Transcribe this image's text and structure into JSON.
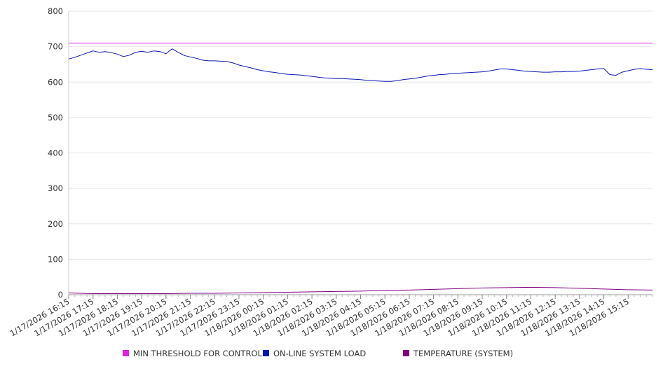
{
  "chart_data": {
    "type": "line",
    "title": "",
    "xlabel": "",
    "ylabel": "",
    "ylim": [
      0,
      800
    ],
    "y_ticks": [
      0,
      100,
      200,
      300,
      400,
      500,
      600,
      700,
      800
    ],
    "x_range": [
      "1/17/2026 16:15",
      "1/18/2026 16:15"
    ],
    "x_tick_labels": [
      "1/17/2026 16:15",
      "1/17/2026 17:15",
      "1/17/2026 18:15",
      "1/17/2026 19:15",
      "1/17/2026 20:15",
      "1/17/2026 21:15",
      "1/17/2026 22:15",
      "1/17/2026 23:15",
      "1/18/2026 00:15",
      "1/18/2026 01:15",
      "1/18/2026 02:15",
      "1/18/2026 03:15",
      "1/18/2026 04:15",
      "1/18/2026 05:15",
      "1/18/2026 06:15",
      "1/18/2026 07:15",
      "1/18/2026 08:15",
      "1/18/2026 09:15",
      "1/18/2026 10:15",
      "1/18/2026 11:15",
      "1/18/2026 12:15",
      "1/18/2026 13:15",
      "1/18/2026 14:15",
      "1/18/2026 15:15"
    ],
    "grid": "horizontal",
    "legend_placement": "bottom",
    "series": [
      {
        "name": "MIN THRESHOLD FOR CONTROL",
        "color": "#e020e0",
        "x": [
          "1/17/2026 16:15",
          "1/18/2026 16:15"
        ],
        "y": [
          710,
          710
        ]
      },
      {
        "name": "ON-LINE SYSTEM LOAD",
        "color": "#0a14b4",
        "x": [
          "1/17/2026 16:15",
          "1/17/2026 16:30",
          "1/17/2026 16:45",
          "1/17/2026 17:00",
          "1/17/2026 17:15",
          "1/17/2026 17:30",
          "1/17/2026 17:45",
          "1/17/2026 18:00",
          "1/17/2026 18:15",
          "1/17/2026 18:30",
          "1/17/2026 18:45",
          "1/17/2026 19:00",
          "1/17/2026 19:15",
          "1/17/2026 19:30",
          "1/17/2026 19:45",
          "1/17/2026 20:00",
          "1/17/2026 20:15",
          "1/17/2026 20:30",
          "1/17/2026 20:45",
          "1/17/2026 21:00",
          "1/17/2026 21:15",
          "1/17/2026 21:30",
          "1/17/2026 21:45",
          "1/17/2026 22:00",
          "1/17/2026 22:15",
          "1/17/2026 22:30",
          "1/17/2026 22:45",
          "1/17/2026 23:00",
          "1/17/2026 23:15",
          "1/17/2026 23:30",
          "1/17/2026 23:45",
          "1/18/2026 00:00",
          "1/18/2026 00:15",
          "1/18/2026 00:30",
          "1/18/2026 00:45",
          "1/18/2026 01:00",
          "1/18/2026 01:15",
          "1/18/2026 01:30",
          "1/18/2026 01:45",
          "1/18/2026 02:00",
          "1/18/2026 02:15",
          "1/18/2026 02:30",
          "1/18/2026 02:45",
          "1/18/2026 03:00",
          "1/18/2026 03:15",
          "1/18/2026 03:30",
          "1/18/2026 03:45",
          "1/18/2026 04:00",
          "1/18/2026 04:15",
          "1/18/2026 04:30",
          "1/18/2026 04:45",
          "1/18/2026 05:00",
          "1/18/2026 05:15",
          "1/18/2026 05:30",
          "1/18/2026 05:45",
          "1/18/2026 06:00",
          "1/18/2026 06:15",
          "1/18/2026 06:30",
          "1/18/2026 06:45",
          "1/18/2026 07:00",
          "1/18/2026 07:15",
          "1/18/2026 07:30",
          "1/18/2026 07:45",
          "1/18/2026 08:00",
          "1/18/2026 08:15",
          "1/18/2026 08:30",
          "1/18/2026 08:45",
          "1/18/2026 09:00",
          "1/18/2026 09:15",
          "1/18/2026 09:30",
          "1/18/2026 09:45",
          "1/18/2026 10:00",
          "1/18/2026 10:15",
          "1/18/2026 10:30",
          "1/18/2026 10:45",
          "1/18/2026 11:00",
          "1/18/2026 11:15",
          "1/18/2026 11:30",
          "1/18/2026 11:45",
          "1/18/2026 12:00",
          "1/18/2026 12:15",
          "1/18/2026 12:30",
          "1/18/2026 12:45",
          "1/18/2026 13:00",
          "1/18/2026 13:15",
          "1/18/2026 13:30",
          "1/18/2026 13:45",
          "1/18/2026 14:00",
          "1/18/2026 14:15",
          "1/18/2026 14:30",
          "1/18/2026 14:45",
          "1/18/2026 15:00",
          "1/18/2026 15:15",
          "1/18/2026 15:30",
          "1/18/2026 15:45",
          "1/18/2026 16:00",
          "1/18/2026 16:15"
        ],
        "y": [
          665,
          670,
          676,
          682,
          688,
          684,
          686,
          683,
          679,
          672,
          676,
          684,
          687,
          684,
          688,
          686,
          680,
          694,
          684,
          675,
          671,
          667,
          662,
          660,
          660,
          659,
          658,
          654,
          648,
          644,
          640,
          635,
          632,
          629,
          627,
          624,
          622,
          621,
          620,
          618,
          616,
          614,
          612,
          611,
          610,
          610,
          609,
          608,
          607,
          605,
          604,
          603,
          602,
          602,
          604,
          607,
          609,
          611,
          614,
          617,
          619,
          621,
          622,
          624,
          625,
          626,
          627,
          628,
          629,
          631,
          634,
          637,
          637,
          635,
          633,
          631,
          630,
          629,
          628,
          628,
          629,
          629,
          630,
          630,
          631,
          633,
          635,
          637,
          638,
          621,
          619,
          628,
          632,
          636,
          638,
          636,
          635
        ]
      },
      {
        "name": "TEMPERATURE (SYSTEM)",
        "color": "#800080",
        "x": [
          "1/17/2026 16:15",
          "1/17/2026 17:15",
          "1/17/2026 18:15",
          "1/17/2026 19:15",
          "1/17/2026 20:15",
          "1/17/2026 21:15",
          "1/17/2026 22:15",
          "1/17/2026 23:15",
          "1/18/2026 00:15",
          "1/18/2026 01:15",
          "1/18/2026 02:15",
          "1/18/2026 03:15",
          "1/18/2026 04:15",
          "1/18/2026 05:15",
          "1/18/2026 06:15",
          "1/18/2026 07:15",
          "1/18/2026 08:15",
          "1/18/2026 09:15",
          "1/18/2026 10:15",
          "1/18/2026 11:15",
          "1/18/2026 12:15",
          "1/18/2026 13:15",
          "1/18/2026 14:15",
          "1/18/2026 15:15",
          "1/18/2026 16:15"
        ],
        "y": [
          5,
          3,
          3,
          3,
          3,
          4,
          4,
          5,
          6,
          7,
          8,
          9,
          10,
          12,
          13,
          15,
          17,
          19,
          20,
          21,
          20,
          18,
          16,
          14,
          13
        ]
      }
    ]
  }
}
